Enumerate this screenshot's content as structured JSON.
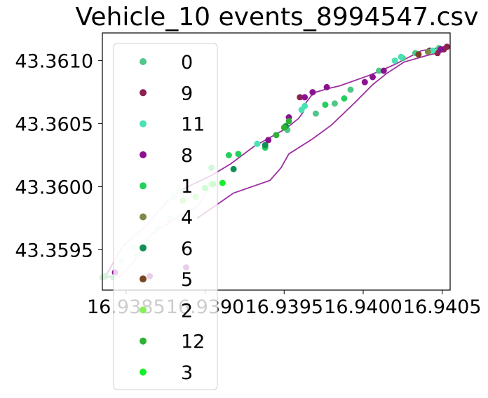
{
  "chart_data": {
    "type": "scatter",
    "title": "Vehicle_10 events_8994547.csv",
    "xlabel": "",
    "ylabel": "",
    "xlim": [
      16.93835,
      16.94055
    ],
    "ylim": [
      43.35918,
      43.36122
    ],
    "x_ticks": [
      {
        "value": 16.9385,
        "label": "16.9385"
      },
      {
        "value": 16.939,
        "label": "16.9390"
      },
      {
        "value": 16.9395,
        "label": "16.9395"
      },
      {
        "value": 16.94,
        "label": "16.9400"
      },
      {
        "value": 16.9405,
        "label": "16.9405"
      }
    ],
    "y_ticks": [
      {
        "value": 43.3595,
        "label": "43.3595"
      },
      {
        "value": 43.36,
        "label": "43.3600"
      },
      {
        "value": 43.3605,
        "label": "43.3605"
      },
      {
        "value": 43.361,
        "label": "43.3610"
      }
    ],
    "grid": false,
    "legend_position": "upper-left",
    "path_lines": [
      {
        "color": "#9b2fa0",
        "points": [
          [
            16.93895,
            43.35975
          ],
          [
            16.93918,
            43.35995
          ],
          [
            16.93941,
            43.36005
          ],
          [
            16.93948,
            43.36015
          ],
          [
            16.93953,
            43.36026
          ],
          [
            16.93968,
            43.36038
          ],
          [
            16.9398,
            43.36049
          ],
          [
            16.93995,
            43.36067
          ],
          [
            16.94006,
            43.36081
          ],
          [
            16.94015,
            43.3609
          ],
          [
            16.94026,
            43.36099
          ],
          [
            16.9404,
            43.36104
          ],
          [
            16.9405,
            43.36107
          ]
        ]
      },
      {
        "color": "#9b2fa0",
        "points": [
          [
            16.94052,
            43.36111
          ],
          [
            16.94037,
            43.36108
          ],
          [
            16.9402,
            43.36097
          ],
          [
            16.94011,
            43.36092
          ],
          [
            16.94003,
            43.36088
          ],
          [
            16.93985,
            43.3608
          ],
          [
            16.93978,
            43.36078
          ],
          [
            16.9397,
            43.36075
          ],
          [
            16.93967,
            43.36072
          ],
          [
            16.93964,
            43.36067
          ],
          [
            16.93962,
            43.36059
          ],
          [
            16.93959,
            43.36054
          ],
          [
            16.93951,
            43.36046
          ],
          [
            16.93941,
            43.36039
          ],
          [
            16.93931,
            43.36032
          ],
          [
            16.93916,
            43.36018
          ],
          [
            16.93904,
            43.36009
          ],
          [
            16.93884,
            43.35997
          ]
        ]
      },
      {
        "color": "#e7cde8",
        "points": [
          [
            16.93884,
            43.35997
          ],
          [
            16.93875,
            43.35987
          ],
          [
            16.93861,
            43.35967
          ],
          [
            16.93848,
            43.35953
          ],
          [
            16.93837,
            43.35929
          ],
          [
            16.93845,
            43.35928
          ],
          [
            16.93851,
            43.35935
          ],
          [
            16.93858,
            43.35946
          ],
          [
            16.93866,
            43.35962
          ],
          [
            16.93885,
            43.35978
          ],
          [
            16.93895,
            43.35984
          ],
          [
            16.93903,
            43.36
          ]
        ]
      }
    ],
    "series": [
      {
        "name": "0",
        "color": "#52c68a",
        "points": [
          [
            16.9397,
            43.36058
          ],
          [
            16.93982,
            43.36066
          ],
          [
            16.93992,
            43.36077
          ],
          [
            16.9401,
            43.36092
          ],
          [
            16.94025,
            43.36102
          ],
          [
            16.94033,
            43.36106
          ],
          [
            16.94048,
            43.3611
          ],
          [
            16.93952,
            43.36045
          ]
        ]
      },
      {
        "name": "9",
        "color": "#8b2252",
        "points": [
          [
            16.94042,
            43.36108
          ],
          [
            16.94047,
            43.36106
          ],
          [
            16.94051,
            43.36109
          ],
          [
            16.94053,
            43.36111
          ],
          [
            16.9396,
            43.36071
          ]
        ]
      },
      {
        "name": "11",
        "color": "#49e2b4",
        "points": [
          [
            16.9402,
            43.361
          ],
          [
            16.94024,
            43.36103
          ],
          [
            16.93963,
            43.36064
          ],
          [
            16.93961,
            43.36061
          ],
          [
            16.93933,
            43.36034
          ],
          [
            16.94044,
            43.36108
          ]
        ]
      },
      {
        "name": "8",
        "color": "#8a128f",
        "points": [
          [
            16.94001,
            43.36083
          ],
          [
            16.94013,
            43.36092
          ],
          [
            16.94006,
            43.36087
          ],
          [
            16.93977,
            43.36079
          ],
          [
            16.93968,
            43.36075
          ],
          [
            16.93963,
            43.36071
          ],
          [
            16.93953,
            43.36055
          ],
          [
            16.9394,
            43.36037
          ],
          [
            16.93888,
            43.35936
          ],
          [
            16.93865,
            43.35929
          ],
          [
            16.93843,
            43.35932
          ],
          [
            16.94049,
            43.36109
          ]
        ]
      },
      {
        "name": "1",
        "color": "#24d05c",
        "points": [
          [
            16.93988,
            43.3607
          ],
          [
            16.93976,
            43.36065
          ],
          [
            16.93938,
            43.36031
          ],
          [
            16.93921,
            43.36026
          ],
          [
            16.93915,
            43.36025
          ],
          [
            16.93904,
            43.36015
          ]
        ]
      },
      {
        "name": "4",
        "color": "#7d8a47",
        "points": [
          [
            16.94041,
            43.36107
          ]
        ]
      },
      {
        "name": "6",
        "color": "#138e55",
        "points": [
          [
            16.93951,
            43.36048
          ],
          [
            16.93918,
            43.36014
          ],
          [
            16.93938,
            43.36033
          ]
        ]
      },
      {
        "name": "5",
        "color": "#7a4520",
        "points": [
          [
            16.94035,
            43.36105
          ]
        ]
      },
      {
        "name": "2",
        "color": "#84f15c",
        "points": [
          [
            16.93894,
            43.35992
          ],
          [
            16.93904,
            43.36002
          ],
          [
            16.93886,
            43.35989
          ]
        ]
      },
      {
        "name": "12",
        "color": "#2db235",
        "points": [
          [
            16.9395,
            43.36047
          ],
          [
            16.93953,
            43.36052
          ],
          [
            16.93945,
            43.36041
          ]
        ]
      },
      {
        "name": "3",
        "color": "#16ee2c",
        "points": [
          [
            16.93905,
            43.36002
          ],
          [
            16.93911,
            43.36003
          ],
          [
            16.939,
            43.35999
          ]
        ]
      },
      {
        "name": "",
        "color": "#d8f2dc",
        "points": [
          [
            16.9388,
            43.35992
          ],
          [
            16.93878,
            43.35975
          ],
          [
            16.9387,
            43.35967
          ],
          [
            16.93863,
            43.35955
          ],
          [
            16.93863,
            43.35957
          ],
          [
            16.93855,
            43.35952
          ],
          [
            16.93857,
            43.35946
          ],
          [
            16.93847,
            43.35941
          ],
          [
            16.93842,
            43.35928
          ],
          [
            16.93837,
            43.35929
          ],
          [
            16.93835,
            43.35928
          ],
          [
            16.93884,
            43.35997
          ]
        ]
      }
    ]
  }
}
